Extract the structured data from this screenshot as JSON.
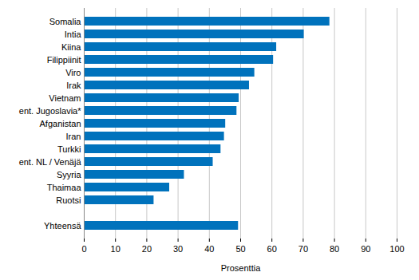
{
  "chart_data": {
    "type": "bar",
    "orientation": "horizontal",
    "categories": [
      "Somalia",
      "Intia",
      "Kiina",
      "Filippiinit",
      "Viro",
      "Irak",
      "Vietnam",
      "ent. Jugoslavia*",
      "Afganistan",
      "Iran",
      "Turkki",
      "ent. NL / Venäjä",
      "Syyria",
      "Thaimaa",
      "Ruotsi",
      null,
      "Yhteensä"
    ],
    "values": [
      78.5,
      70.3,
      61.5,
      60.5,
      54.5,
      52.8,
      49.5,
      48.8,
      45.2,
      44.8,
      43.7,
      41.2,
      32.0,
      27.3,
      22.3,
      null,
      49.3
    ],
    "color": "#0072bc",
    "x_label": "Prosenttia",
    "xlim": [
      0,
      100
    ],
    "xticks": [
      0,
      10,
      20,
      30,
      40,
      50,
      60,
      70,
      80,
      90,
      100
    ],
    "grid": true
  }
}
